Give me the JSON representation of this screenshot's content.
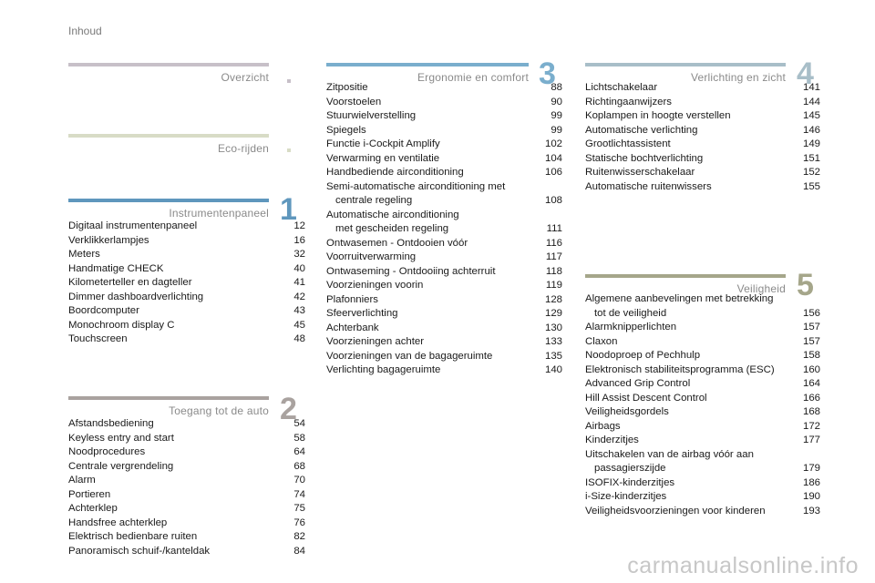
{
  "header": "Inhoud",
  "colors": {
    "overzicht": "#c7c0c8",
    "eco": "#d8dcc6",
    "instrument": "#5f97bd",
    "toegang": "#a9a29f",
    "ergonomie": "#7aaecd",
    "verlichting": "#a8bec8",
    "veiligheid": "#a5a68a"
  },
  "sections": {
    "overzicht": {
      "title": "Overzicht"
    },
    "eco": {
      "title": "Eco-rijden"
    },
    "instrument": {
      "title": "Instrumentenpaneel",
      "number": "1",
      "entries": [
        {
          "label": "Digitaal instrumentenpaneel",
          "page": "12"
        },
        {
          "label": "Verklikkerlampjes",
          "page": "16"
        },
        {
          "label": "Meters",
          "page": "32"
        },
        {
          "label": "Handmatige CHECK",
          "page": "40"
        },
        {
          "label": "Kilometerteller en dagteller",
          "page": "41"
        },
        {
          "label": "Dimmer dashboardverlichting",
          "page": "42"
        },
        {
          "label": "Boordcomputer",
          "page": "43"
        },
        {
          "label": "Monochroom display C",
          "page": "45"
        },
        {
          "label": "Touchscreen",
          "page": "48"
        }
      ]
    },
    "toegang": {
      "title": "Toegang tot de auto",
      "number": "2",
      "entries": [
        {
          "label": "Afstandsbediening",
          "page": "54"
        },
        {
          "label": "Keyless entry and start",
          "page": "58"
        },
        {
          "label": "Noodprocedures",
          "page": "64"
        },
        {
          "label": "Centrale vergrendeling",
          "page": "68"
        },
        {
          "label": "Alarm",
          "page": "70"
        },
        {
          "label": "Portieren",
          "page": "74"
        },
        {
          "label": "Achterklep",
          "page": "75"
        },
        {
          "label": "Handsfree achterklep",
          "page": "76"
        },
        {
          "label": "Elektrisch bedienbare ruiten",
          "page": "82"
        },
        {
          "label": "Panoramisch schuif-/kanteldak",
          "page": "84"
        }
      ]
    },
    "ergonomie": {
      "title": "Ergonomie en comfort",
      "number": "3",
      "entries": [
        {
          "label": "Zitpositie",
          "page": "88"
        },
        {
          "label": "Voorstoelen",
          "page": "90"
        },
        {
          "label": "Stuurwielverstelling",
          "page": "99"
        },
        {
          "label": "Spiegels",
          "page": "99"
        },
        {
          "label": "Functie i-Cockpit Amplify",
          "page": "102"
        },
        {
          "label": "Verwarming en ventilatie",
          "page": "104"
        },
        {
          "label": "Handbediende airconditioning",
          "page": "106"
        },
        {
          "label": "Semi-automatische airconditioning met",
          "cont": "centrale regeling",
          "page": "108"
        },
        {
          "label": "Automatische airconditioning",
          "cont": "met gescheiden regeling",
          "page": "111"
        },
        {
          "label": "Ontwasemen - Ontdooien vóór",
          "page": "116"
        },
        {
          "label": "Voorruitverwarming",
          "page": "117"
        },
        {
          "label": "Ontwaseming - Ontdooiing achterruit",
          "page": "118"
        },
        {
          "label": "Voorzieningen voorin",
          "page": "119"
        },
        {
          "label": "Plafonniers",
          "page": "128"
        },
        {
          "label": "Sfeerverlichting",
          "page": "129"
        },
        {
          "label": "Achterbank",
          "page": "130"
        },
        {
          "label": "Voorzieningen achter",
          "page": "133"
        },
        {
          "label": "Voorzieningen van de bagageruimte",
          "page": "135"
        },
        {
          "label": "Verlichting bagageruimte",
          "page": "140"
        }
      ]
    },
    "verlichting": {
      "title": "Verlichting en zicht",
      "number": "4",
      "entries": [
        {
          "label": "Lichtschakelaar",
          "page": "141"
        },
        {
          "label": "Richtingaanwijzers",
          "page": "144"
        },
        {
          "label": "Koplampen in hoogte verstellen",
          "page": "145"
        },
        {
          "label": "Automatische verlichting",
          "page": "146"
        },
        {
          "label": "Grootlichtassistent",
          "page": "149"
        },
        {
          "label": "Statische bochtverlichting",
          "page": "151"
        },
        {
          "label": "Ruitenwisserschakelaar",
          "page": "152"
        },
        {
          "label": "Automatische ruitenwissers",
          "page": "155"
        }
      ]
    },
    "veiligheid": {
      "title": "Veiligheid",
      "number": "5",
      "entries": [
        {
          "label": "Algemene aanbevelingen met betrekking",
          "cont": "tot de veiligheid",
          "page": "156"
        },
        {
          "label": "Alarmknipperlichten",
          "page": "157"
        },
        {
          "label": "Claxon",
          "page": "157"
        },
        {
          "label": "Noodoproep of Pechhulp",
          "page": "158"
        },
        {
          "label": "Elektronisch stabiliteitsprogramma (ESC)",
          "page": "160"
        },
        {
          "label": "Advanced Grip Control",
          "page": "164"
        },
        {
          "label": "Hill Assist Descent Control",
          "page": "166"
        },
        {
          "label": "Veiligheidsgordels",
          "page": "168"
        },
        {
          "label": "Airbags",
          "page": "172"
        },
        {
          "label": "Kinderzitjes",
          "page": "177"
        },
        {
          "label": "Uitschakelen van de airbag vóór aan",
          "cont": "passagierszijde",
          "page": "179"
        },
        {
          "label": "ISOFIX-kinderzitjes",
          "page": "186"
        },
        {
          "label": "i-Size-kinderzitjes",
          "page": "190"
        },
        {
          "label": "Veiligheidsvoorzieningen voor kinderen",
          "page": "193"
        }
      ]
    }
  },
  "watermark": "carmanualsonline.info"
}
